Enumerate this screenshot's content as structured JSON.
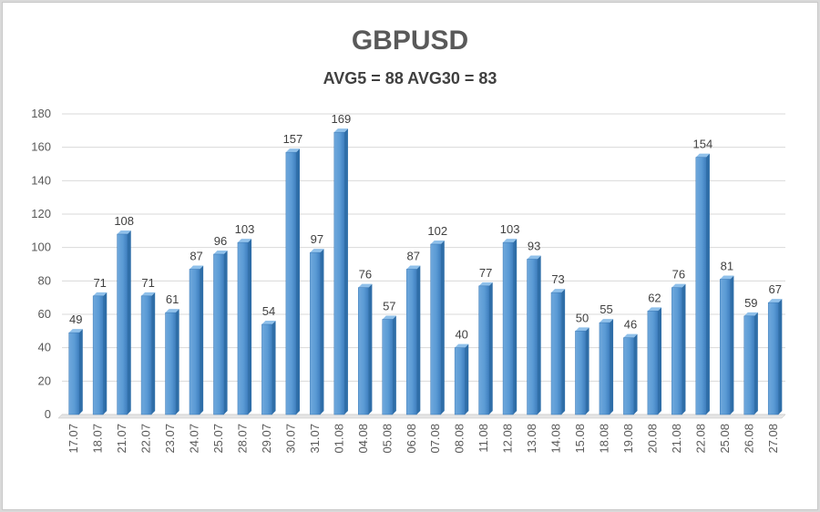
{
  "chart_data": {
    "type": "bar",
    "title": "GBPUSD",
    "subtitle": "AVG5 = 88 AVG30 = 83",
    "categories": [
      "17.07",
      "18.07",
      "21.07",
      "22.07",
      "23.07",
      "24.07",
      "25.07",
      "28.07",
      "29.07",
      "30.07",
      "31.07",
      "01.08",
      "04.08",
      "05.08",
      "06.08",
      "07.08",
      "08.08",
      "11.08",
      "12.08",
      "13.08",
      "14.08",
      "15.08",
      "18.08",
      "19.08",
      "20.08",
      "21.08",
      "22.08",
      "25.08",
      "26.08",
      "27.08"
    ],
    "values": [
      49,
      71,
      108,
      71,
      61,
      87,
      96,
      103,
      54,
      157,
      97,
      169,
      76,
      57,
      87,
      102,
      40,
      77,
      103,
      93,
      73,
      50,
      55,
      46,
      62,
      76,
      154,
      81,
      59,
      67
    ],
    "ylim": [
      0,
      180
    ],
    "yticks": [
      0,
      20,
      40,
      60,
      80,
      100,
      120,
      140,
      160,
      180
    ],
    "grid": true,
    "legend": "none",
    "bar_color": "#5b9bd5"
  }
}
